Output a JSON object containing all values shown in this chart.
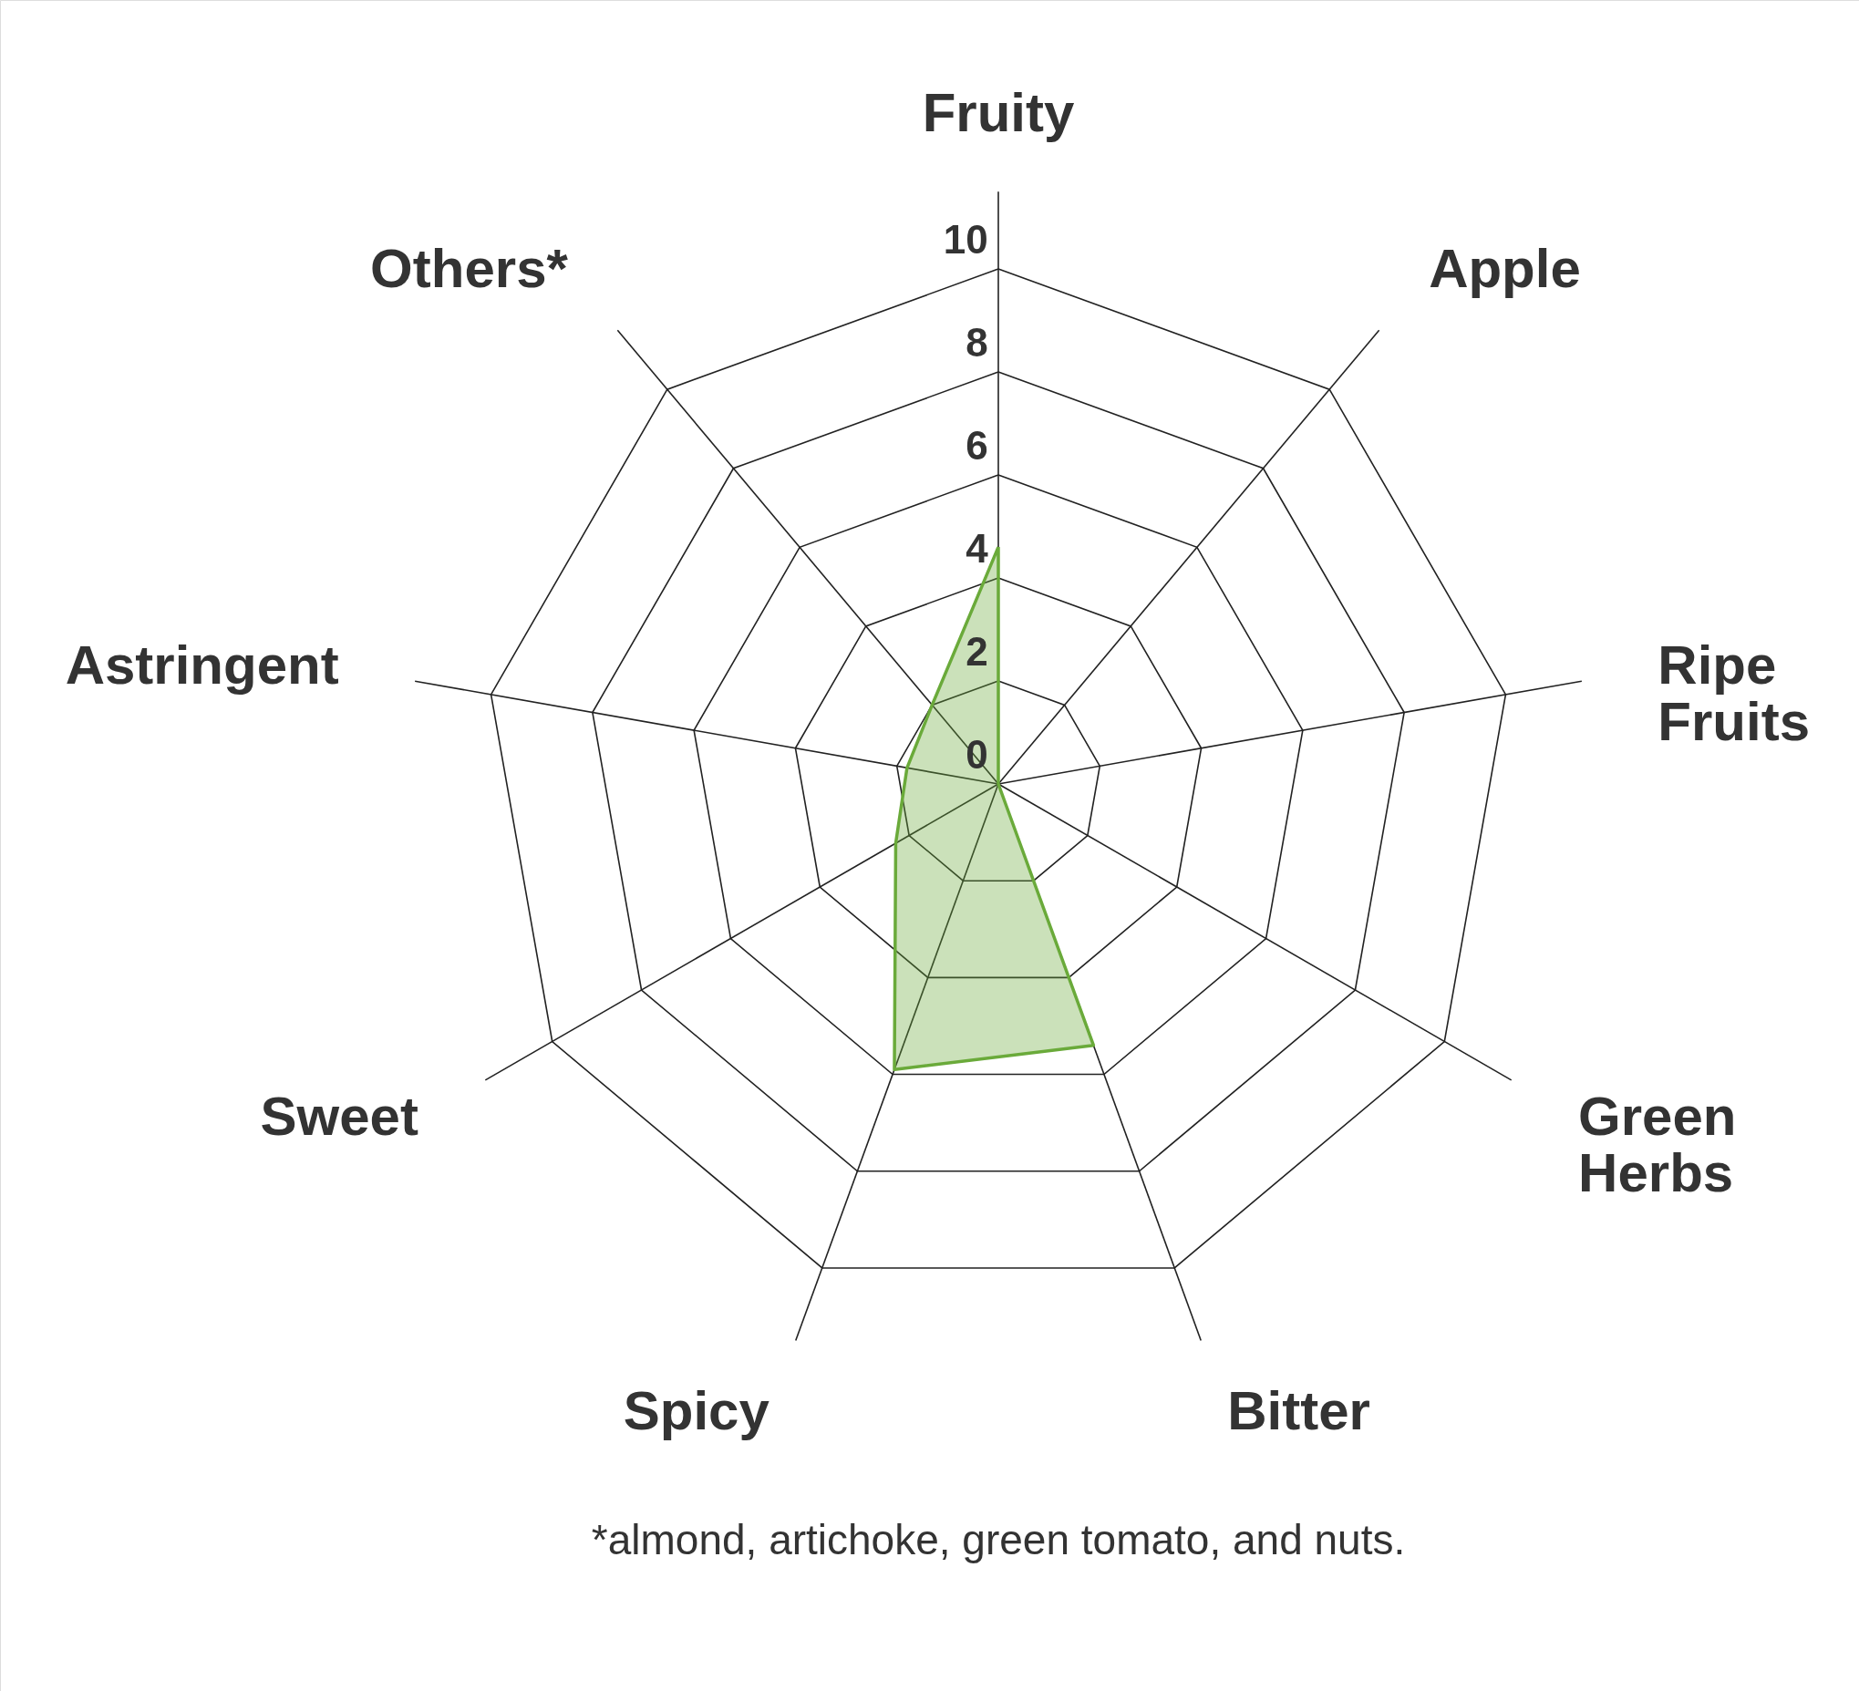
{
  "chart_data": {
    "type": "radar",
    "categories": [
      "Fruity",
      "Apple",
      "Ripe Fruits",
      "Green Herbs",
      "Bitter",
      "Spicy",
      "Sweet",
      "Astringent",
      "Others*"
    ],
    "series": [
      {
        "color": "#6aaa3a",
        "values": [
          4.6,
          0,
          0,
          0,
          5.4,
          5.9,
          2.3,
          1.8,
          2.0
        ]
      }
    ],
    "ylim": [
      0,
      10
    ],
    "yticks": [
      0,
      2,
      4,
      6,
      8,
      10
    ],
    "grid": true,
    "marker": "none",
    "line_style": "solid",
    "annotations": [
      "*almond, artichoke, green tomato, and nuts."
    ]
  }
}
